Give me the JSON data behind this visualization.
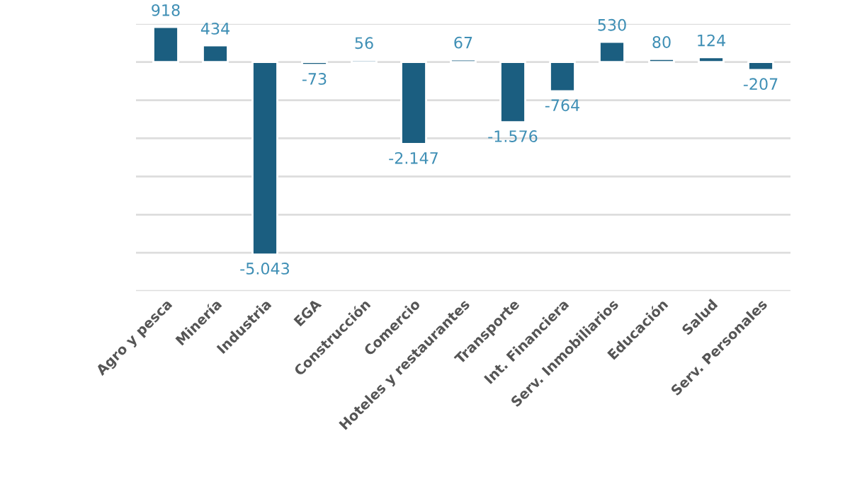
{
  "chart_data": {
    "type": "bar",
    "categories": [
      "Agro y pesca",
      "Minería",
      "Industria",
      "EGA",
      "Construcción",
      "Comercio",
      "Hoteles y restaurantes",
      "Transporte",
      "Int. Financiera",
      "Serv. Inmobiliarios",
      "Educación",
      "Salud",
      "Serv. Personales"
    ],
    "values": [
      918,
      434,
      -5043,
      -73,
      56,
      -2147,
      67,
      -1576,
      -764,
      530,
      80,
      124,
      -207
    ],
    "value_labels": [
      "918",
      "434",
      "-5.043",
      "-73",
      "56",
      "-2.147",
      "67",
      "-1.576",
      "-764",
      "530",
      "80",
      "124",
      "-207"
    ],
    "color": "#1b5e80",
    "ylim": [
      -6000,
      1000
    ],
    "yticks": [
      {
        "value": -6000,
        "label": null
      },
      {
        "value": -5000,
        "label": null
      },
      {
        "value": -4000,
        "label": null
      },
      {
        "value": -3000,
        "label": null
      },
      {
        "value": -2000,
        "label": null
      },
      {
        "value": -1000,
        "label": null
      },
      {
        "value": 0,
        "label": null
      },
      {
        "value": 1000,
        "label": null
      }
    ],
    "grid": "y",
    "tick_labels": "x"
  }
}
